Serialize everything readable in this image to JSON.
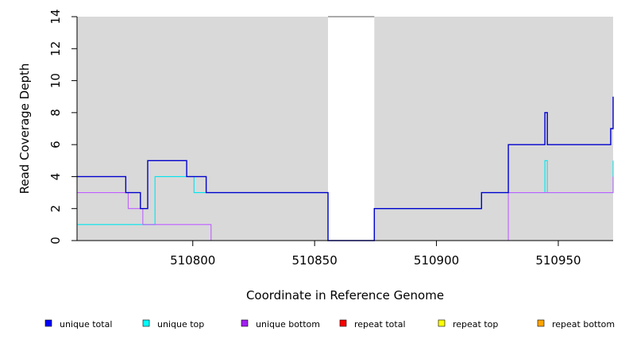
{
  "chart_data": {
    "type": "line",
    "step": true,
    "xlabel": "Coordinate in Reference Genome",
    "ylabel": "Read Coverage Depth",
    "xlim": [
      510752.5,
      510972.5
    ],
    "ylim": [
      0,
      14
    ],
    "x_ticks": [
      510800,
      510850,
      510900,
      510950
    ],
    "x_tick_labels": [
      "510800",
      "510850",
      "510900",
      "510950"
    ],
    "y_ticks": [
      0,
      2,
      4,
      6,
      8,
      10,
      12,
      14
    ],
    "y_tick_labels": [
      "0",
      "2",
      "4",
      "6",
      "8",
      "10",
      "12",
      "14"
    ],
    "uncovered_regions": [
      {
        "start": 510752.5,
        "end": 510855.5,
        "shade": "#d9d9d9"
      },
      {
        "start": 510855.5,
        "end": 510874.5,
        "shade": "#ffffff"
      },
      {
        "start": 510874.5,
        "end": 510972.5,
        "shade": "#d9d9d9"
      }
    ],
    "series": [
      {
        "name": "unique total",
        "color": "#0000cd",
        "points": [
          [
            510752.5,
            4
          ],
          [
            510772.5,
            4
          ],
          [
            510772.5,
            3
          ],
          [
            510778.5,
            3
          ],
          [
            510778.5,
            2
          ],
          [
            510781.5,
            2
          ],
          [
            510781.5,
            5
          ],
          [
            510797.5,
            5
          ],
          [
            510797.5,
            4
          ],
          [
            510805.5,
            4
          ],
          [
            510805.5,
            3
          ],
          [
            510855.5,
            3
          ],
          [
            510855.5,
            0
          ],
          [
            510874.5,
            0
          ],
          [
            510874.5,
            2
          ],
          [
            510918.5,
            2
          ],
          [
            510918.5,
            3
          ],
          [
            510929.5,
            3
          ],
          [
            510929.5,
            6
          ],
          [
            510944.5,
            6
          ],
          [
            510944.5,
            8
          ],
          [
            510945.5,
            8
          ],
          [
            510945.5,
            6
          ],
          [
            510971.5,
            6
          ],
          [
            510971.5,
            7
          ],
          [
            510972.5,
            7
          ],
          [
            510972.5,
            9
          ]
        ]
      },
      {
        "name": "unique top",
        "color": "#00e5ee",
        "points": [
          [
            510752.5,
            1
          ],
          [
            510784.5,
            1
          ],
          [
            510784.5,
            4
          ],
          [
            510800.5,
            4
          ],
          [
            510800.5,
            3
          ],
          [
            510855.5,
            3
          ],
          [
            510855.5,
            0
          ],
          [
            510874.5,
            0
          ],
          [
            510874.5,
            2
          ],
          [
            510918.5,
            2
          ],
          [
            510918.5,
            3
          ],
          [
            510944.5,
            3
          ],
          [
            510944.5,
            5
          ],
          [
            510945.5,
            5
          ],
          [
            510945.5,
            3
          ],
          [
            510972.5,
            3
          ],
          [
            510972.5,
            5
          ]
        ]
      },
      {
        "name": "unique bottom",
        "color": "#bf5fff",
        "points": [
          [
            510752.5,
            3
          ],
          [
            510773.5,
            3
          ],
          [
            510773.5,
            2
          ],
          [
            510779.5,
            2
          ],
          [
            510779.5,
            1
          ],
          [
            510807.5,
            1
          ],
          [
            510807.5,
            0
          ],
          [
            510929.5,
            0
          ],
          [
            510929.5,
            3
          ],
          [
            510972.5,
            3
          ],
          [
            510972.5,
            4
          ]
        ]
      },
      {
        "name": "repeat total",
        "color": "#ff0000",
        "points": [
          [
            510752.5,
            0
          ],
          [
            510972.5,
            0
          ]
        ]
      },
      {
        "name": "repeat top",
        "color": "#ffff00",
        "points": [
          [
            510752.5,
            0
          ],
          [
            510972.5,
            0
          ]
        ]
      },
      {
        "name": "repeat bottom",
        "color": "#ffa500",
        "points": [
          [
            510752.5,
            0
          ],
          [
            510972.5,
            0
          ]
        ]
      }
    ],
    "legend": {
      "placement": "bottom",
      "entries": [
        {
          "label": "unique total",
          "color": "#0000ff"
        },
        {
          "label": "unique top",
          "color": "#00ffff"
        },
        {
          "label": "unique bottom",
          "color": "#a020f0"
        },
        {
          "label": "repeat total",
          "color": "#ff0000"
        },
        {
          "label": "repeat top",
          "color": "#ffff00"
        },
        {
          "label": "repeat bottom",
          "color": "#ffa500"
        }
      ]
    }
  }
}
